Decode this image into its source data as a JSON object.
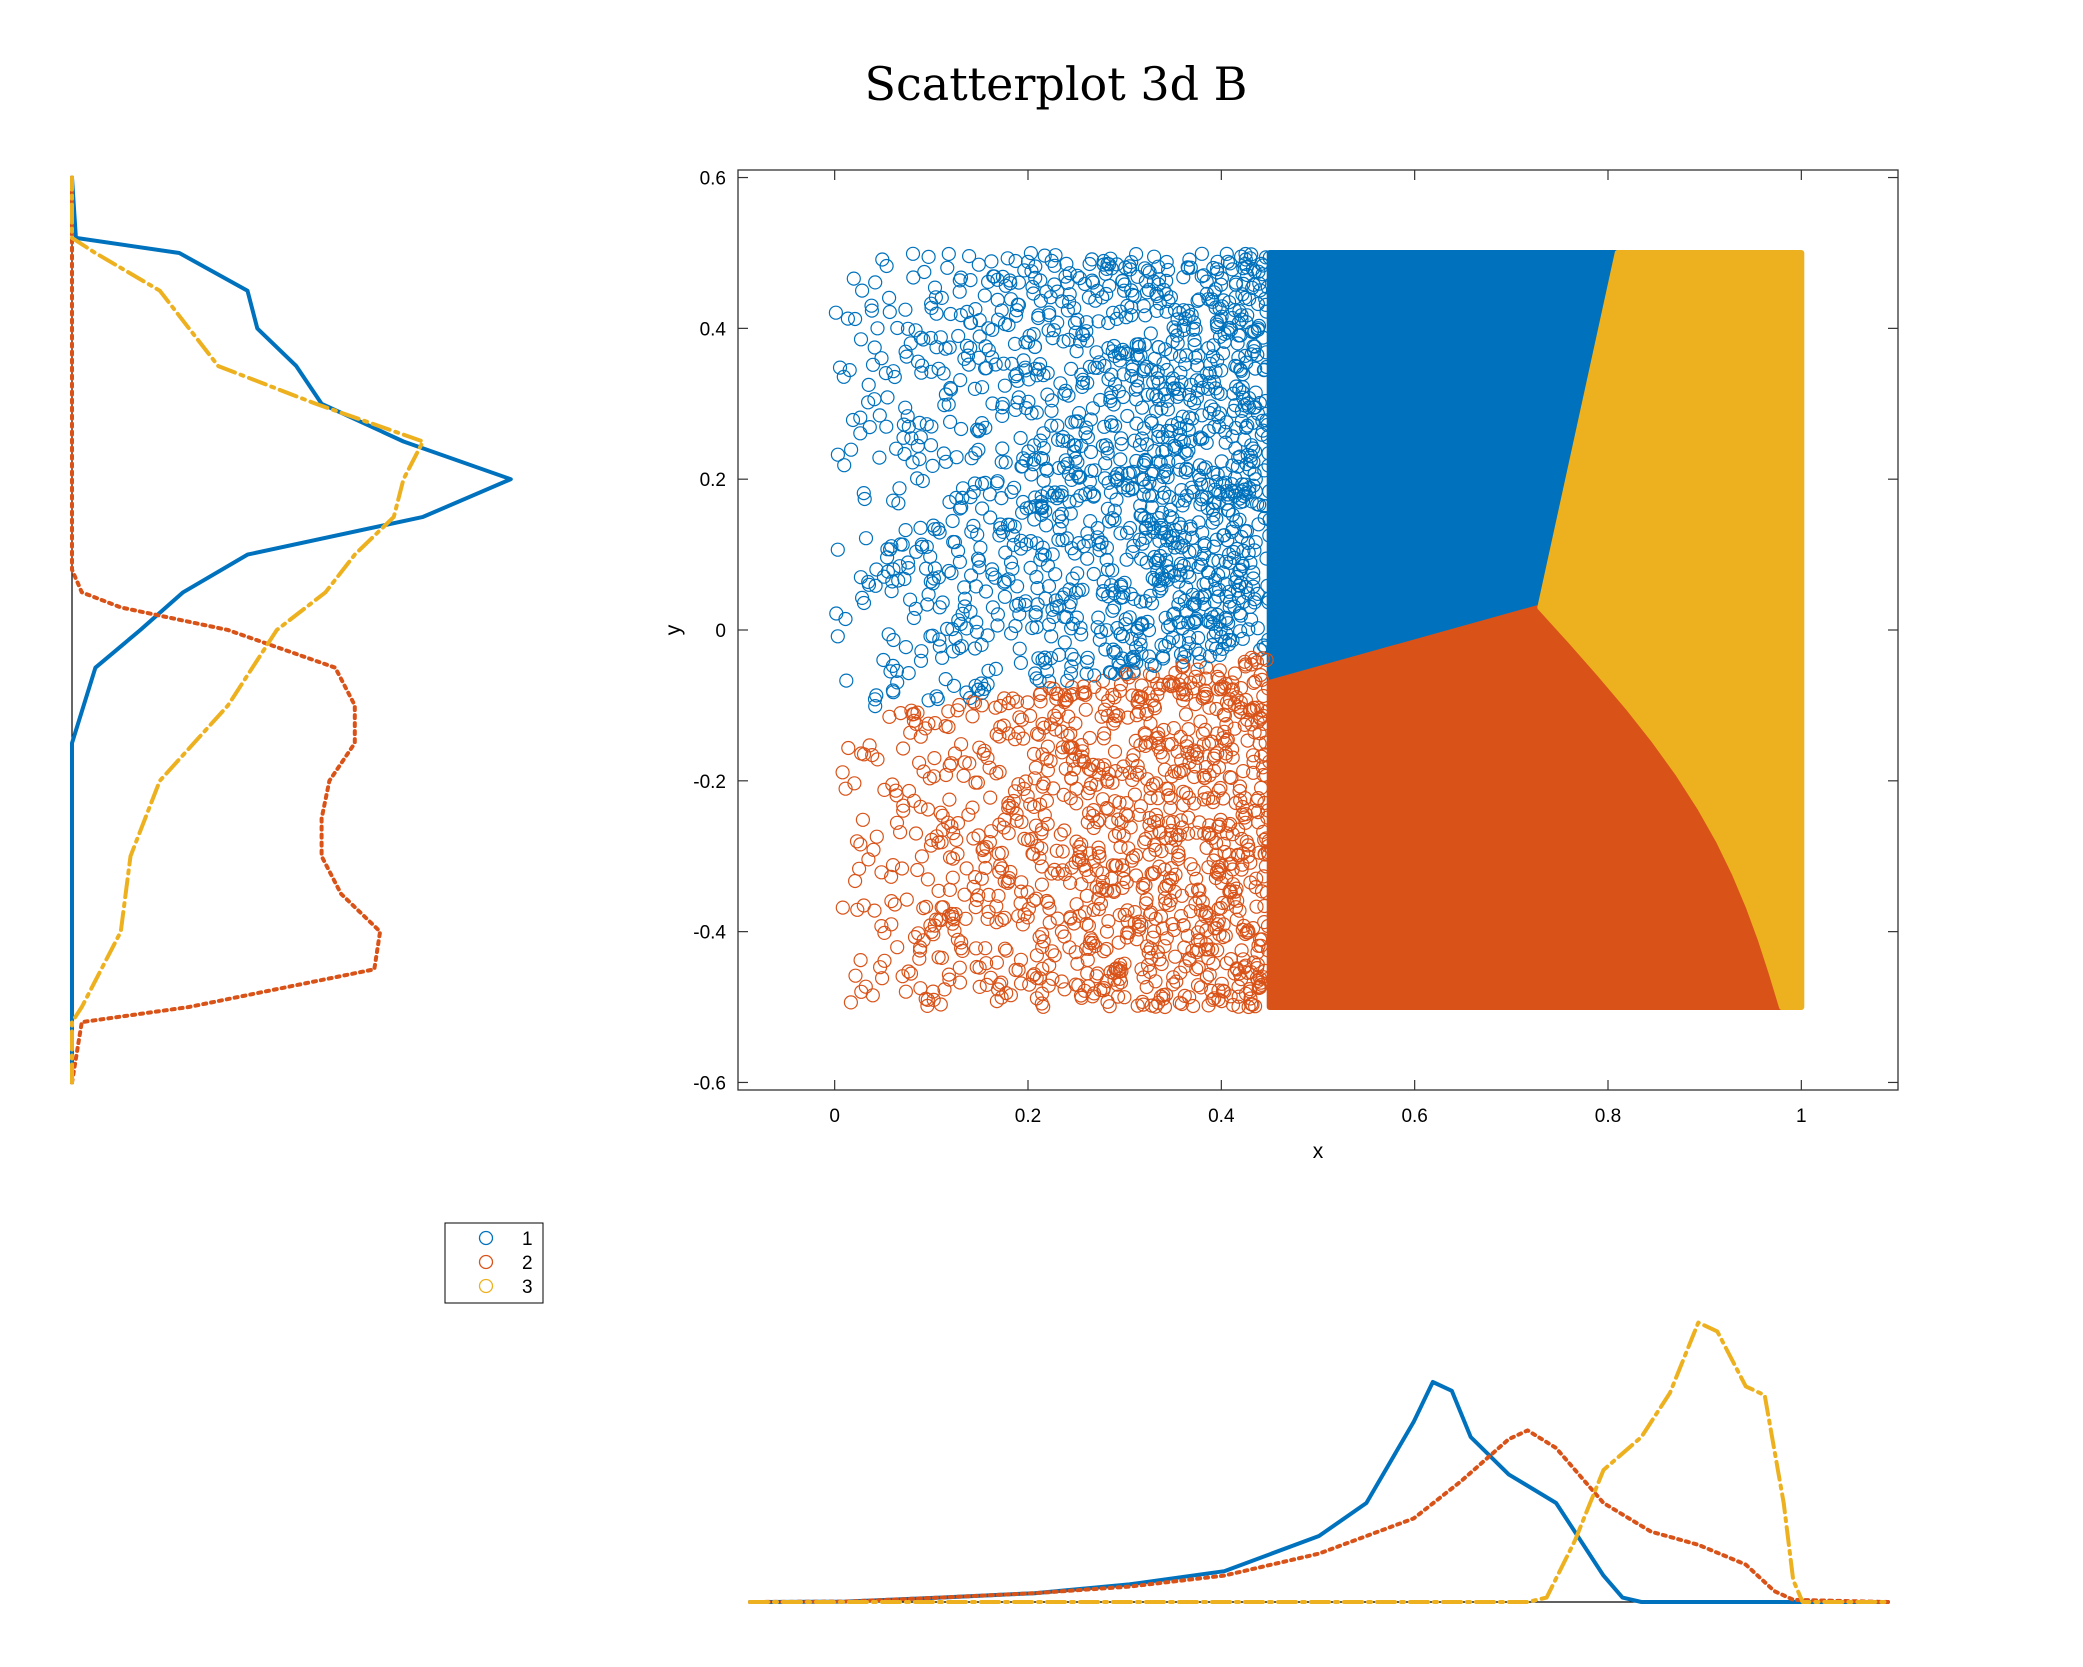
{
  "chart_data": {
    "type": "scatter",
    "title": "Scatterplot 3d B",
    "xlabel": "x",
    "ylabel": "y",
    "xlim": [
      -0.1,
      1.1
    ],
    "ylim": [
      -0.61,
      0.61
    ],
    "xticks": [
      0,
      0.2,
      0.4,
      0.6,
      0.8,
      1
    ],
    "xtick_labels": [
      "0",
      "0.2",
      "0.4",
      "0.6",
      "0.8",
      "1"
    ],
    "yticks": [
      -0.6,
      -0.4,
      -0.2,
      0,
      0.2,
      0.4,
      0.6
    ],
    "ytick_labels": [
      "-0.6",
      "-0.4",
      "-0.2",
      "0",
      "0.2",
      "0.4",
      "0.6"
    ],
    "grid": false,
    "legend_position": "left, below the y-marginal",
    "marker": "open-circle",
    "series": [
      {
        "name": "1",
        "color": "#0072BD",
        "region": "upper-left of the point cloud (y above the boundary, x below about 0.73–0.81)",
        "x_range": [
          0.0,
          0.81
        ],
        "y_range": [
          -0.12,
          0.5
        ]
      },
      {
        "name": "2",
        "color": "#D95319",
        "region": "lower-left of the point cloud",
        "x_range": [
          0.0,
          0.98
        ],
        "y_range": [
          -0.5,
          0.03
        ]
      },
      {
        "name": "3",
        "color": "#EDB120",
        "region": "right side of the point cloud",
        "x_range": [
          0.73,
          1.0
        ],
        "y_range": [
          -0.5,
          0.5
        ]
      }
    ],
    "region_vertices": {
      "junction": [
        0.73,
        0.03
      ],
      "boundary_1_3_top": [
        0.81,
        0.5
      ],
      "boundary_1_2_left": [
        0.0,
        -0.12
      ],
      "boundary_2_3_bottom": [
        0.98,
        -0.5
      ]
    },
    "x_marginal_density": {
      "line_styles": {
        "1": "solid",
        "2": "dotted",
        "3": "dash-dot"
      },
      "series": [
        {
          "name": "1",
          "x": [
            -0.1,
            0.0,
            0.1,
            0.2,
            0.3,
            0.4,
            0.5,
            0.55,
            0.6,
            0.62,
            0.64,
            0.66,
            0.7,
            0.75,
            0.8,
            0.82,
            0.84,
            1.1
          ],
          "y": [
            0,
            0.002,
            0.02,
            0.04,
            0.08,
            0.14,
            0.3,
            0.45,
            0.82,
            1.0,
            0.96,
            0.75,
            0.58,
            0.45,
            0.12,
            0.02,
            0,
            0
          ]
        },
        {
          "name": "2",
          "x": [
            -0.1,
            0.0,
            0.1,
            0.2,
            0.3,
            0.4,
            0.5,
            0.6,
            0.65,
            0.7,
            0.72,
            0.75,
            0.8,
            0.85,
            0.9,
            0.95,
            0.98,
            1.0,
            1.1
          ],
          "y": [
            0,
            0.002,
            0.02,
            0.04,
            0.07,
            0.12,
            0.22,
            0.38,
            0.55,
            0.74,
            0.78,
            0.7,
            0.45,
            0.32,
            0.26,
            0.17,
            0.05,
            0.01,
            0
          ]
        },
        {
          "name": "3",
          "x": [
            -0.1,
            0.72,
            0.74,
            0.77,
            0.8,
            0.84,
            0.87,
            0.9,
            0.92,
            0.95,
            0.97,
            0.99,
            1.0,
            1.01,
            1.1
          ],
          "y": [
            0,
            0,
            0.02,
            0.28,
            0.6,
            0.75,
            0.95,
            1.27,
            1.23,
            0.98,
            0.94,
            0.45,
            0.1,
            0,
            0
          ]
        }
      ]
    },
    "y_marginal_density": {
      "line_styles": {
        "1": "solid",
        "2": "dotted",
        "3": "dash-dot"
      },
      "series": [
        {
          "name": "1",
          "y": [
            -0.6,
            -0.15,
            -0.05,
            0.0,
            0.05,
            0.1,
            0.15,
            0.2,
            0.25,
            0.3,
            0.35,
            0.4,
            0.45,
            0.5,
            0.52,
            0.6
          ],
          "x": [
            0,
            0,
            0.12,
            0.35,
            0.57,
            0.9,
            1.8,
            2.25,
            1.7,
            1.28,
            1.15,
            0.95,
            0.9,
            0.55,
            0.02,
            0
          ]
        },
        {
          "name": "2",
          "y": [
            -0.6,
            -0.52,
            -0.5,
            -0.45,
            -0.4,
            -0.35,
            -0.3,
            -0.25,
            -0.2,
            -0.15,
            -0.1,
            -0.05,
            0.0,
            0.03,
            0.05,
            0.08,
            0.6
          ],
          "x": [
            0,
            0.05,
            0.6,
            1.55,
            1.58,
            1.38,
            1.28,
            1.28,
            1.32,
            1.45,
            1.45,
            1.35,
            0.8,
            0.25,
            0.05,
            0,
            0
          ]
        },
        {
          "name": "3",
          "y": [
            -0.6,
            -0.52,
            -0.5,
            -0.45,
            -0.4,
            -0.3,
            -0.2,
            -0.1,
            0.0,
            0.05,
            0.1,
            0.15,
            0.2,
            0.25,
            0.3,
            0.35,
            0.4,
            0.45,
            0.5,
            0.52,
            0.6
          ],
          "x": [
            0,
            0,
            0.05,
            0.15,
            0.25,
            0.3,
            0.45,
            0.8,
            1.05,
            1.3,
            1.45,
            1.65,
            1.7,
            1.8,
            1.25,
            0.75,
            0.6,
            0.45,
            0.12,
            0,
            0
          ]
        }
      ]
    }
  }
}
